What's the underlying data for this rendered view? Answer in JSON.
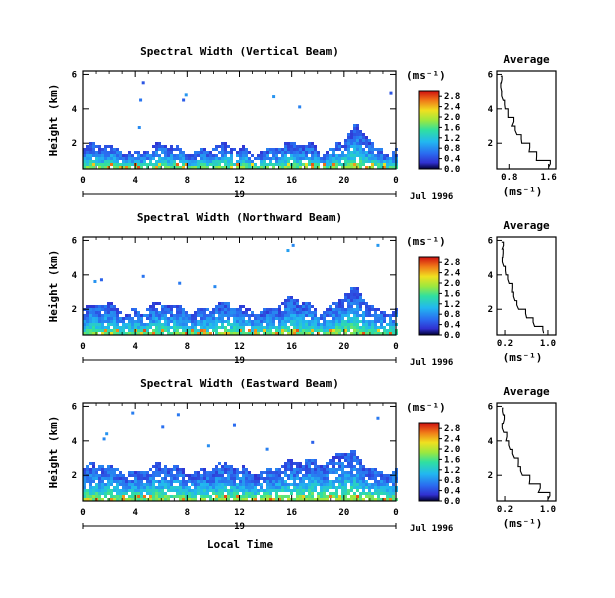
{
  "figure": {
    "xlabel": "Local Time",
    "date_label": "Jul 1996",
    "day_label": "19"
  },
  "chart_data": [
    {
      "type": "heatmap",
      "title": "Spectral Width (Vertical Beam)",
      "ylabel": "Height (km)",
      "xlabel": "Local Time",
      "colorbar_label": "(ms⁻¹)",
      "xticks": [
        "0",
        "4",
        "8",
        "12",
        "16",
        "20",
        "0"
      ],
      "yticks": [
        "2",
        "4",
        "6"
      ],
      "xlim": [
        0,
        24
      ],
      "ylim": [
        0.5,
        6.2
      ],
      "colorbar_ticks": [
        "0.0",
        "0.4",
        "0.8",
        "1.2",
        "1.6",
        "2.0",
        "2.4",
        "2.8"
      ],
      "colorbar_range": [
        0,
        3.0
      ],
      "cloud": {
        "base_top_km": 1.8,
        "bumps": [
          {
            "t": 21,
            "h": 1.0
          },
          {
            "t": 17.5,
            "h": 0.3
          }
        ],
        "near_ground_max": 2.6,
        "scatter_points": [
          [
            4.5,
            5.6
          ],
          [
            4.3,
            4.6
          ],
          [
            7.8,
            4.9
          ],
          [
            7.6,
            4.6
          ],
          [
            14.5,
            4.8
          ],
          [
            16.5,
            4.2
          ],
          [
            23.5,
            5.0
          ],
          [
            4.2,
            3.0
          ]
        ]
      },
      "average_profile": {
        "title": "Average",
        "xlabel": "(ms⁻¹)",
        "xticks": [
          "0.8",
          "1.6"
        ],
        "yticks": [
          "2",
          "4",
          "6"
        ],
        "xlim": [
          0.55,
          1.75
        ],
        "ylim": [
          0.5,
          6.2
        ],
        "height_km": [
          0.6,
          1.0,
          1.5,
          2.0,
          2.5,
          3.0,
          3.5,
          4.0,
          4.5,
          5.0,
          5.5,
          5.9
        ],
        "value": [
          1.6,
          1.35,
          1.2,
          1.05,
          0.95,
          0.85,
          0.78,
          0.72,
          0.68,
          0.65,
          0.64,
          0.63
        ]
      }
    },
    {
      "type": "heatmap",
      "title": "Spectral Width (Northward Beam)",
      "ylabel": "Height (km)",
      "xlabel": "Local Time",
      "colorbar_label": "(ms⁻¹)",
      "xticks": [
        "0",
        "4",
        "8",
        "12",
        "16",
        "20",
        "0"
      ],
      "yticks": [
        "2",
        "4",
        "6"
      ],
      "xlim": [
        0,
        24
      ],
      "ylim": [
        0.5,
        6.2
      ],
      "colorbar_ticks": [
        "0.0",
        "0.4",
        "0.8",
        "1.2",
        "1.6",
        "2.0",
        "2.4",
        "2.8"
      ],
      "colorbar_range": [
        0,
        3.0
      ],
      "cloud": {
        "base_top_km": 2.2,
        "bumps": [
          {
            "t": 20.5,
            "h": 0.9
          },
          {
            "t": 16.5,
            "h": 0.4
          }
        ],
        "near_ground_max": 2.4,
        "scatter_points": [
          [
            1.3,
            3.8
          ],
          [
            4.5,
            4.0
          ],
          [
            7.3,
            3.6
          ],
          [
            15.6,
            5.5
          ],
          [
            16.0,
            5.8
          ],
          [
            22.5,
            5.8
          ],
          [
            0.8,
            3.7
          ],
          [
            10.0,
            3.4
          ]
        ]
      },
      "average_profile": {
        "title": "Average",
        "xlabel": "(ms⁻¹)",
        "xticks": [
          "0.2",
          "1.0"
        ],
        "yticks": [
          "2",
          "4",
          "6"
        ],
        "xlim": [
          0.05,
          1.15
        ],
        "ylim": [
          0.5,
          6.2
        ],
        "height_km": [
          0.6,
          1.0,
          1.5,
          2.0,
          2.5,
          3.0,
          3.5,
          4.0,
          4.5,
          5.0,
          5.5,
          5.9
        ],
        "value": [
          0.92,
          0.75,
          0.6,
          0.45,
          0.38,
          0.33,
          0.28,
          0.22,
          0.18,
          0.16,
          0.15,
          0.14
        ]
      }
    },
    {
      "type": "heatmap",
      "title": "Spectral Width (Eastward Beam)",
      "ylabel": "Height (km)",
      "xlabel": "Local Time",
      "colorbar_label": "(ms⁻¹)",
      "xticks": [
        "0",
        "4",
        "8",
        "12",
        "16",
        "20",
        "0"
      ],
      "yticks": [
        "2",
        "4",
        "6"
      ],
      "xlim": [
        0,
        24
      ],
      "ylim": [
        0.5,
        6.2
      ],
      "colorbar_ticks": [
        "0.0",
        "0.4",
        "0.8",
        "1.2",
        "1.6",
        "2.0",
        "2.4",
        "2.8"
      ],
      "colorbar_range": [
        0,
        3.0
      ],
      "cloud": {
        "base_top_km": 2.5,
        "bumps": [
          {
            "t": 20,
            "h": 0.9
          },
          {
            "t": 17.5,
            "h": 0.6
          }
        ],
        "near_ground_max": 2.6,
        "scatter_points": [
          [
            1.7,
            4.5
          ],
          [
            1.5,
            4.2
          ],
          [
            3.7,
            5.7
          ],
          [
            7.2,
            5.6
          ],
          [
            9.5,
            3.8
          ],
          [
            14.0,
            3.6
          ],
          [
            17.5,
            4.0
          ],
          [
            22.5,
            5.4
          ],
          [
            6.0,
            4.9
          ],
          [
            11.5,
            5.0
          ]
        ]
      },
      "average_profile": {
        "title": "Average",
        "xlabel": "(ms⁻¹)",
        "xticks": [
          "0.2",
          "1.0"
        ],
        "yticks": [
          "2",
          "4",
          "6"
        ],
        "xlim": [
          0.05,
          1.15
        ],
        "ylim": [
          0.5,
          6.2
        ],
        "height_km": [
          0.6,
          1.0,
          1.5,
          2.0,
          2.5,
          3.0,
          3.5,
          4.0,
          4.5,
          5.0,
          5.5,
          5.9
        ],
        "value": [
          1.0,
          0.82,
          0.65,
          0.52,
          0.44,
          0.37,
          0.3,
          0.22,
          0.18,
          0.17,
          0.17,
          0.17
        ]
      }
    }
  ]
}
